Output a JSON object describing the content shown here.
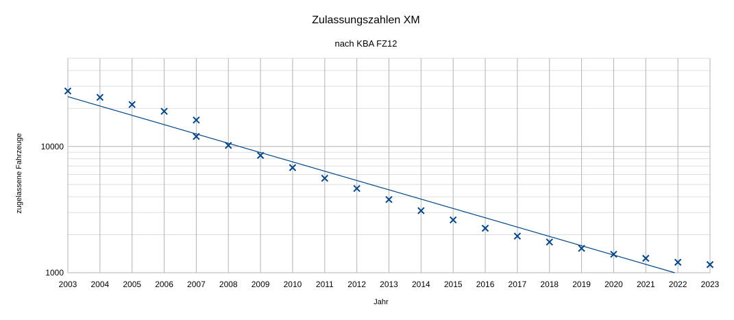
{
  "chart_data": {
    "type": "scatter",
    "title": "Zulassungszahlen XM",
    "subtitle": "nach KBA FZ12",
    "xlabel": "Jahr",
    "ylabel": "zugelassene Fahrzeuge",
    "y_scale": "log",
    "ylim": [
      1000,
      50000
    ],
    "xlim": [
      2003,
      2023
    ],
    "x_ticks": [
      "2003",
      "2004",
      "2005",
      "2006",
      "2007",
      "2008",
      "2009",
      "2010",
      "2011",
      "2012",
      "2013",
      "2014",
      "2015",
      "2016",
      "2017",
      "2018",
      "2019",
      "2020",
      "2021",
      "2022",
      "2023"
    ],
    "y_ticks": [
      {
        "value": 1000,
        "label": "1000"
      },
      {
        "value": 10000,
        "label": "10000"
      }
    ],
    "grid": true,
    "marker": "x",
    "series_color": "#004586",
    "points": [
      {
        "x": 2003,
        "y": 27500
      },
      {
        "x": 2004,
        "y": 24500
      },
      {
        "x": 2005,
        "y": 21500
      },
      {
        "x": 2006,
        "y": 19000
      },
      {
        "x": 2007,
        "y": 16200
      },
      {
        "x": 2007,
        "y": 12000
      },
      {
        "x": 2008,
        "y": 10200
      },
      {
        "x": 2009,
        "y": 8500
      },
      {
        "x": 2010,
        "y": 6800
      },
      {
        "x": 2011,
        "y": 5600
      },
      {
        "x": 2012,
        "y": 4650
      },
      {
        "x": 2013,
        "y": 3800
      },
      {
        "x": 2014,
        "y": 3100
      },
      {
        "x": 2015,
        "y": 2620
      },
      {
        "x": 2016,
        "y": 2250
      },
      {
        "x": 2017,
        "y": 1950
      },
      {
        "x": 2018,
        "y": 1750
      },
      {
        "x": 2019,
        "y": 1560
      },
      {
        "x": 2020,
        "y": 1400
      },
      {
        "x": 2021,
        "y": 1300
      },
      {
        "x": 2022,
        "y": 1210
      },
      {
        "x": 2023,
        "y": 1160
      }
    ],
    "trendline": {
      "type": "exponential",
      "start": {
        "x": 2003,
        "y": 24800
      },
      "end": {
        "x": 2021.9,
        "y": 1000
      }
    }
  }
}
